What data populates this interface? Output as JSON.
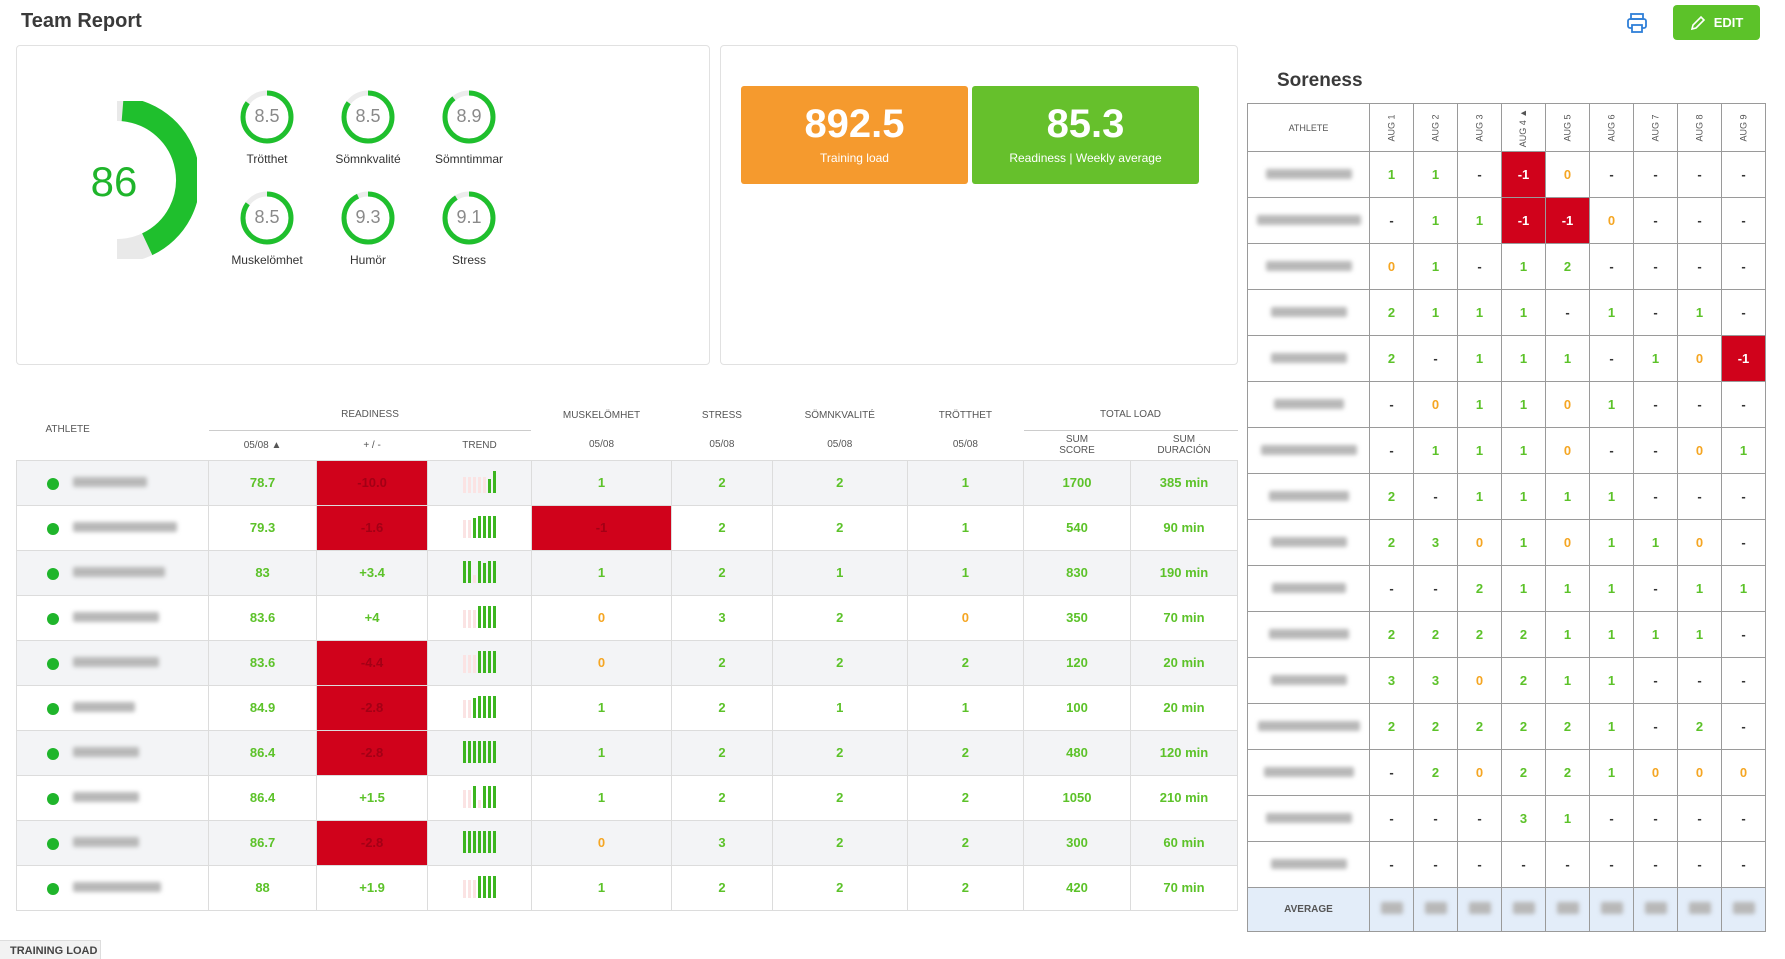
{
  "header": {
    "title": "Team Report",
    "edit_label": "EDIT",
    "icons": [
      "printer-icon",
      "pencil-icon"
    ]
  },
  "scores": {
    "overall": 86,
    "overall_fraction": 0.86,
    "metrics": [
      {
        "label": "Trötthet",
        "value": "8.5",
        "fraction": 0.85
      },
      {
        "label": "Sömnkvalité",
        "value": "8.5",
        "fraction": 0.85
      },
      {
        "label": "Sömntimmar",
        "value": "8.9",
        "fraction": 0.89
      },
      {
        "label": "Muskelömhet",
        "value": "8.5",
        "fraction": 0.85
      },
      {
        "label": "Humör",
        "value": "9.3",
        "fraction": 0.93
      },
      {
        "label": "Stress",
        "value": "9.1",
        "fraction": 0.91
      }
    ]
  },
  "kpis": [
    {
      "value": "892.5",
      "label": "Training load",
      "color": "#f59a2e"
    },
    {
      "value": "85.3",
      "label": "Readiness | Weekly average",
      "color": "#66c02c"
    }
  ],
  "readiness_table": {
    "group_headers": {
      "athlete": "ATHLETE",
      "readiness": "READINESS",
      "musk": "MUSKELÖMHET",
      "stress": "STRESS",
      "somn": "SÖMNKVALITÉ",
      "trott": "TRÖTTHET",
      "total": "TOTAL LOAD"
    },
    "sub_headers": {
      "date_sorted": "05/08 ▲",
      "diff": "+ / -",
      "trend": "TREND",
      "date": "05/08",
      "sum_score": "SUM\nSCORE",
      "sum_dur": "SUM\nDURACIÓN"
    },
    "rows": [
      {
        "readiness": "78.7",
        "diff": "-10.0",
        "diff_red": true,
        "musk": "1",
        "musk_red": false,
        "stress": "2",
        "somn": "2",
        "trott": "1",
        "score": "1700",
        "dur": "385 min"
      },
      {
        "readiness": "79.3",
        "diff": "-1.6",
        "diff_red": true,
        "musk": "-1",
        "musk_red": true,
        "stress": "2",
        "somn": "2",
        "trott": "1",
        "score": "540",
        "dur": "90 min"
      },
      {
        "readiness": "83",
        "diff": "+3.4",
        "diff_red": false,
        "musk": "1",
        "musk_red": false,
        "stress": "2",
        "somn": "1",
        "trott": "1",
        "score": "830",
        "dur": "190 min"
      },
      {
        "readiness": "83.6",
        "diff": "+4",
        "diff_red": false,
        "musk": "0",
        "musk_red": false,
        "stress": "3",
        "somn": "2",
        "trott": "0",
        "score": "350",
        "dur": "70 min"
      },
      {
        "readiness": "83.6",
        "diff": "-4.4",
        "diff_red": true,
        "musk": "0",
        "musk_red": false,
        "stress": "2",
        "somn": "2",
        "trott": "2",
        "score": "120",
        "dur": "20 min"
      },
      {
        "readiness": "84.9",
        "diff": "-2.8",
        "diff_red": true,
        "musk": "1",
        "musk_red": false,
        "stress": "2",
        "somn": "1",
        "trott": "1",
        "score": "100",
        "dur": "20 min"
      },
      {
        "readiness": "86.4",
        "diff": "-2.8",
        "diff_red": true,
        "musk": "1",
        "musk_red": false,
        "stress": "2",
        "somn": "2",
        "trott": "2",
        "score": "480",
        "dur": "120 min"
      },
      {
        "readiness": "86.4",
        "diff": "+1.5",
        "diff_red": false,
        "musk": "1",
        "musk_red": false,
        "stress": "2",
        "somn": "2",
        "trott": "2",
        "score": "1050",
        "dur": "210 min"
      },
      {
        "readiness": "86.7",
        "diff": "-2.8",
        "diff_red": true,
        "musk": "0",
        "musk_red": false,
        "stress": "3",
        "somn": "2",
        "trott": "2",
        "score": "300",
        "dur": "60 min"
      },
      {
        "readiness": "88",
        "diff": "+1.9",
        "diff_red": false,
        "musk": "1",
        "musk_red": false,
        "stress": "2",
        "somn": "2",
        "trott": "2",
        "score": "420",
        "dur": "70 min"
      }
    ]
  },
  "soreness": {
    "title": "Soreness",
    "athlete_header": "ATHLETE",
    "dates": [
      "AUG 1",
      "AUG 2",
      "AUG 3",
      "AUG 4 ▲",
      "AUG 5",
      "AUG 6",
      "AUG 7",
      "AUG 8",
      "AUG 9"
    ],
    "rows": [
      [
        "1",
        "1",
        "-",
        "-1",
        "0",
        "-",
        "-",
        "-",
        "-"
      ],
      [
        "-",
        "1",
        "1",
        "-1",
        "-1",
        "0",
        "-",
        "-",
        "-"
      ],
      [
        "0",
        "1",
        "-",
        "1",
        "2",
        "-",
        "-",
        "-",
        "-"
      ],
      [
        "2",
        "1",
        "1",
        "1",
        "-",
        "1",
        "-",
        "1",
        "-"
      ],
      [
        "2",
        "-",
        "1",
        "1",
        "1",
        "-",
        "1",
        "0",
        "-1"
      ],
      [
        "-",
        "0",
        "1",
        "1",
        "0",
        "1",
        "-",
        "-",
        "-"
      ],
      [
        "-",
        "1",
        "1",
        "1",
        "0",
        "-",
        "-",
        "0",
        "1"
      ],
      [
        "2",
        "-",
        "1",
        "1",
        "1",
        "1",
        "-",
        "-",
        "-"
      ],
      [
        "2",
        "3",
        "0",
        "1",
        "0",
        "1",
        "1",
        "0",
        "-"
      ],
      [
        "-",
        "-",
        "2",
        "1",
        "1",
        "1",
        "-",
        "1",
        "1"
      ],
      [
        "2",
        "2",
        "2",
        "2",
        "1",
        "1",
        "1",
        "1",
        "-"
      ],
      [
        "3",
        "3",
        "0",
        "2",
        "1",
        "1",
        "-",
        "-",
        "-"
      ],
      [
        "2",
        "2",
        "2",
        "2",
        "2",
        "1",
        "-",
        "2",
        "-"
      ],
      [
        "-",
        "2",
        "0",
        "2",
        "2",
        "1",
        "0",
        "0",
        "0"
      ],
      [
        "-",
        "-",
        "-",
        "3",
        "1",
        "-",
        "-",
        "-",
        "-"
      ],
      [
        "-",
        "-",
        "-",
        "-",
        "-",
        "-",
        "-",
        "-",
        "-"
      ]
    ],
    "average_label": "AVERAGE"
  },
  "footer": {
    "tab_label": "TRAINING LOAD"
  }
}
